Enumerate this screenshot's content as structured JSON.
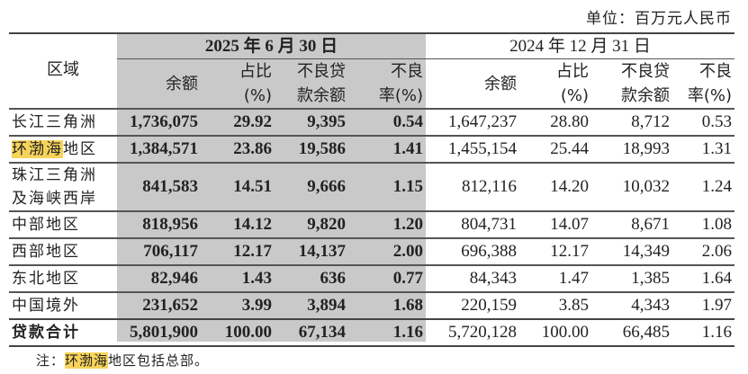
{
  "unit": "单位：百万元人民币",
  "header": {
    "region": "区域",
    "period_current": "2025 年 6 月 30 日",
    "period_prior": "2024 年 12 月 31 日",
    "cols": [
      [
        "余额"
      ],
      [
        "占比",
        "(%)"
      ],
      [
        "不良贷",
        "款余额"
      ],
      [
        "不良",
        "率(%)"
      ]
    ]
  },
  "highlight_color": "#f7d35a",
  "current_band_color": "#c9c9c9",
  "rows": [
    {
      "region": [
        "长江三角洲"
      ],
      "cur": [
        "1,736,075",
        "29.92",
        "9,395",
        "0.54"
      ],
      "prev": [
        "1,647,237",
        "28.80",
        "8,712",
        "0.53"
      ]
    },
    {
      "region": [
        "环渤海地区"
      ],
      "hl": "环渤海",
      "rest": "地区",
      "cur": [
        "1,384,571",
        "23.86",
        "19,586",
        "1.41"
      ],
      "prev": [
        "1,455,154",
        "25.44",
        "18,993",
        "1.31"
      ]
    },
    {
      "region": [
        "珠江三角洲",
        "及海峡西岸"
      ],
      "cur": [
        "841,583",
        "14.51",
        "9,666",
        "1.15"
      ],
      "prev": [
        "812,116",
        "14.20",
        "10,032",
        "1.24"
      ]
    },
    {
      "region": [
        "中部地区"
      ],
      "cur": [
        "818,956",
        "14.12",
        "9,820",
        "1.20"
      ],
      "prev": [
        "804,731",
        "14.07",
        "8,671",
        "1.08"
      ]
    },
    {
      "region": [
        "西部地区"
      ],
      "cur": [
        "706,117",
        "12.17",
        "14,137",
        "2.00"
      ],
      "prev": [
        "696,388",
        "12.17",
        "14,349",
        "2.06"
      ]
    },
    {
      "region": [
        "东北地区"
      ],
      "cur": [
        "82,946",
        "1.43",
        "636",
        "0.77"
      ],
      "prev": [
        "84,343",
        "1.47",
        "1,385",
        "1.64"
      ]
    },
    {
      "region": [
        "中国境外"
      ],
      "cur": [
        "231,652",
        "3.99",
        "3,894",
        "1.68"
      ],
      "prev": [
        "220,159",
        "3.85",
        "4,343",
        "1.97"
      ]
    },
    {
      "region": [
        "贷款合计"
      ],
      "total": true,
      "cur": [
        "5,801,900",
        "100.00",
        "67,134",
        "1.16"
      ],
      "prev": [
        "5,720,128",
        "100.00",
        "66,485",
        "1.16"
      ]
    }
  ],
  "note": {
    "prefix": "注：",
    "hl": "环渤海",
    "rest": "地区包括总部。"
  }
}
